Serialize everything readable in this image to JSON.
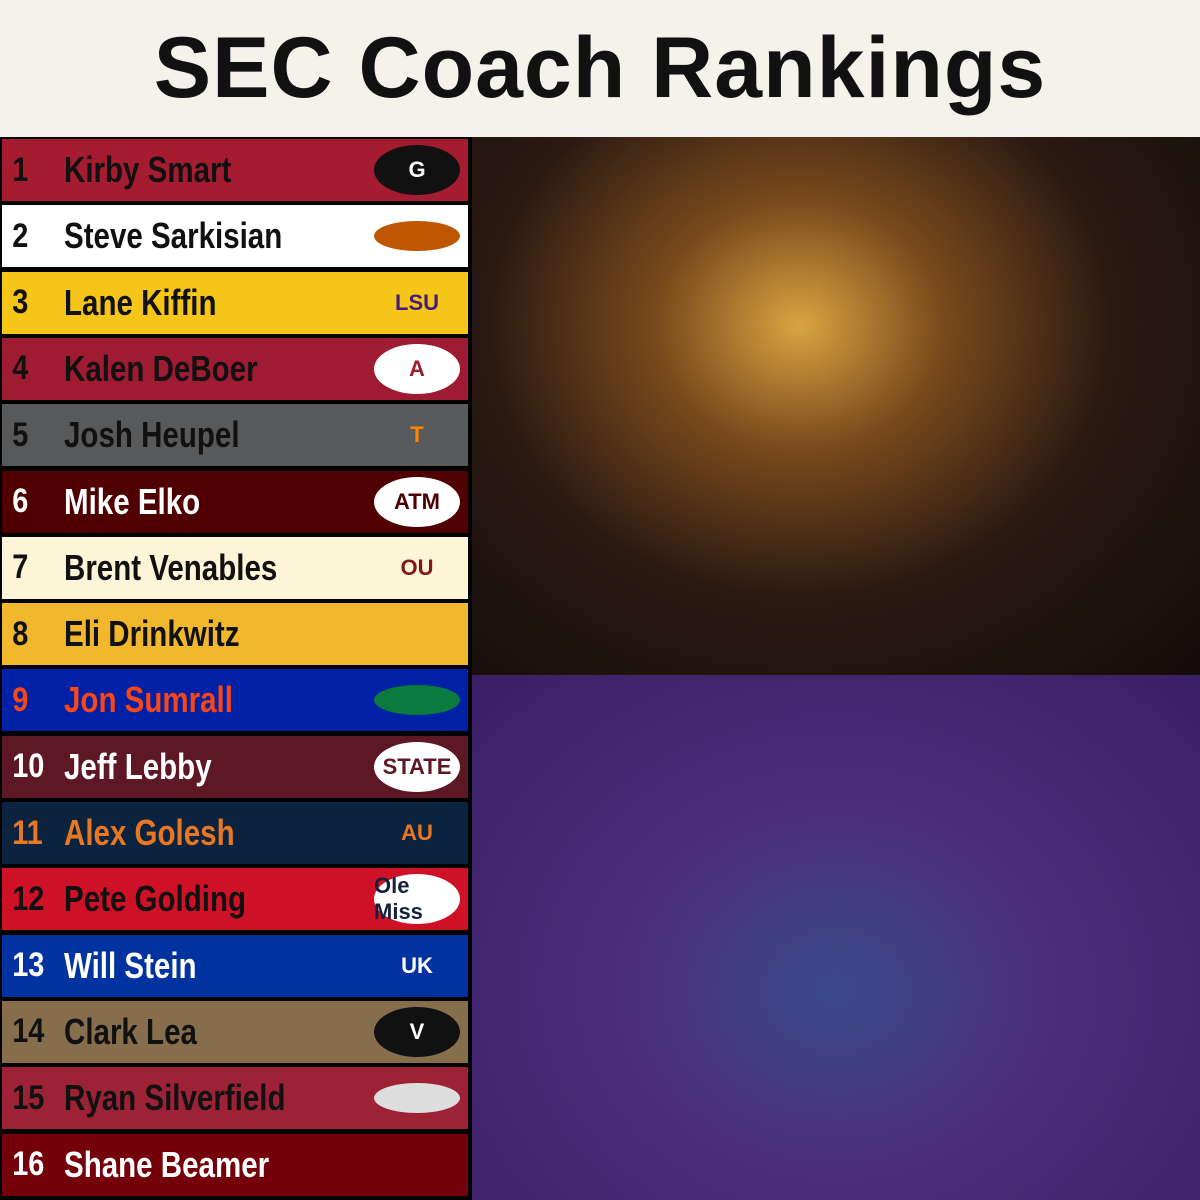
{
  "header": {
    "title": "SEC Coach Rankings"
  },
  "rankings": [
    {
      "rank": "1",
      "name": "Kirby Smart",
      "logo": "G"
    },
    {
      "rank": "2",
      "name": "Steve Sarkisian"
    },
    {
      "rank": "3",
      "name": "Lane Kiffin",
      "logo": "LSU"
    },
    {
      "rank": "4",
      "name": "Kalen DeBoer",
      "logo": "A"
    },
    {
      "rank": "5",
      "name": "Josh Heupel",
      "logo": "T"
    },
    {
      "rank": "6",
      "name": "Mike Elko",
      "logo": "ATM"
    },
    {
      "rank": "7",
      "name": "Brent Venables",
      "logo": "OU"
    },
    {
      "rank": "8",
      "name": "Eli Drinkwitz"
    },
    {
      "rank": "9",
      "name": "Jon Sumrall"
    },
    {
      "rank": "10",
      "name": "Jeff Lebby",
      "logo": "STATE"
    },
    {
      "rank": "11",
      "name": "Alex Golesh",
      "logo": "AU"
    },
    {
      "rank": "12",
      "name": "Pete Golding",
      "logo": "Ole Miss"
    },
    {
      "rank": "13",
      "name": "Will Stein",
      "logo": "UK"
    },
    {
      "rank": "14",
      "name": "Clark Lea",
      "logo": "V"
    },
    {
      "rank": "15",
      "name": "Ryan Silverfield"
    },
    {
      "rank": "16",
      "name": "Shane Beamer"
    }
  ]
}
